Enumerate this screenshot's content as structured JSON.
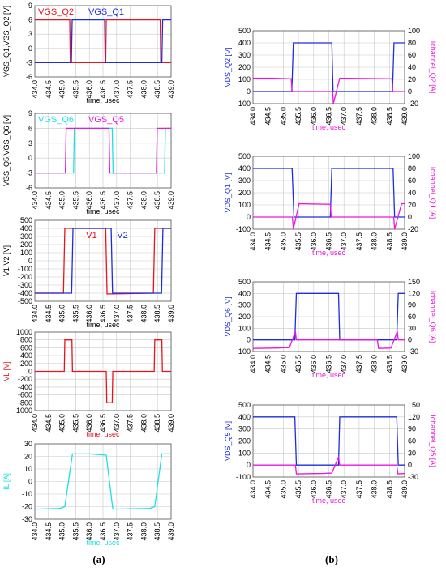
{
  "captions": {
    "a": "(a)",
    "b": "(b)"
  },
  "colors": {
    "red": "#e8141c",
    "blue": "#1e2be3",
    "cyan": "#19e1e6",
    "magenta": "#ec14e0",
    "grid": "#c8c8c8",
    "axis": "#000000"
  },
  "chart_data": [
    {
      "id": "a1",
      "type": "line",
      "xlabel": "time, usec",
      "ylabel": "VGS_Q1,VGS_Q2 [V]",
      "xlim": [
        434.0,
        439.0
      ],
      "ylim": [
        -6,
        9
      ],
      "xticks": [
        434.0,
        434.5,
        435.0,
        435.5,
        436.0,
        436.5,
        437.0,
        437.5,
        438.0,
        438.5,
        439.0
      ],
      "yticks": [
        -6,
        -3,
        0,
        3,
        6,
        9
      ],
      "series": [
        {
          "name": "VGS_Q2",
          "color": "red",
          "points": [
            [
              434.0,
              6
            ],
            [
              435.28,
              6
            ],
            [
              435.3,
              -3
            ],
            [
              436.6,
              -3
            ],
            [
              436.62,
              6
            ],
            [
              438.6,
              6
            ],
            [
              438.62,
              -3
            ],
            [
              439.0,
              -3
            ]
          ]
        },
        {
          "name": "VGS_Q1",
          "color": "blue",
          "points": [
            [
              434.0,
              -3
            ],
            [
              435.34,
              -3
            ],
            [
              435.37,
              6
            ],
            [
              436.56,
              6
            ],
            [
              436.58,
              -3
            ],
            [
              438.66,
              -3
            ],
            [
              438.69,
              6
            ],
            [
              439.0,
              6
            ]
          ]
        }
      ]
    },
    {
      "id": "a2",
      "type": "line",
      "xlabel": "time, usec",
      "ylabel": "VGS_Q5,VGS_Q6 [V]",
      "xlim": [
        434.0,
        439.0
      ],
      "ylim": [
        -6,
        9
      ],
      "xticks": [
        434.0,
        434.5,
        435.0,
        435.5,
        436.0,
        436.5,
        437.0,
        437.5,
        438.0,
        438.5,
        439.0
      ],
      "yticks": [
        -6,
        -3,
        0,
        3,
        6,
        9
      ],
      "series": [
        {
          "name": "VGS_Q6",
          "color": "cyan",
          "points": [
            [
              434.0,
              -3
            ],
            [
              435.42,
              -3
            ],
            [
              435.45,
              6
            ],
            [
              436.84,
              6
            ],
            [
              436.87,
              -3
            ],
            [
              438.76,
              -3
            ],
            [
              438.79,
              6
            ],
            [
              439.0,
              6
            ]
          ]
        },
        {
          "name": "VGS_Q5",
          "color": "magenta",
          "points": [
            [
              434.0,
              -3
            ],
            [
              435.12,
              -3
            ],
            [
              435.15,
              6
            ],
            [
              436.72,
              6
            ],
            [
              436.75,
              -3
            ],
            [
              438.46,
              -3
            ],
            [
              438.49,
              6
            ],
            [
              439.0,
              6
            ]
          ]
        }
      ]
    },
    {
      "id": "a3",
      "type": "line",
      "xlabel": "time, usec",
      "ylabel": "V1,V2 [V]",
      "xlim": [
        434.0,
        439.0
      ],
      "ylim": [
        -500,
        500
      ],
      "xticks": [
        434.0,
        434.5,
        435.0,
        435.5,
        436.0,
        436.5,
        437.0,
        437.5,
        438.0,
        438.5,
        439.0
      ],
      "yticks": [
        -500,
        -400,
        -300,
        -200,
        -100,
        0,
        100,
        200,
        300,
        400,
        500
      ],
      "annotations": [
        "V1",
        "V2"
      ],
      "series": [
        {
          "name": "V1",
          "color": "red",
          "points": [
            [
              434.0,
              -400
            ],
            [
              435.05,
              -400
            ],
            [
              435.1,
              400
            ],
            [
              436.6,
              400
            ],
            [
              436.65,
              -410
            ],
            [
              438.35,
              -400
            ],
            [
              438.4,
              400
            ],
            [
              439.0,
              400
            ]
          ]
        },
        {
          "name": "V2",
          "color": "blue",
          "points": [
            [
              434.0,
              -400
            ],
            [
              435.35,
              -400
            ],
            [
              435.4,
              400
            ],
            [
              436.8,
              400
            ],
            [
              436.85,
              -400
            ],
            [
              438.65,
              -400
            ],
            [
              438.7,
              400
            ],
            [
              439.0,
              400
            ]
          ]
        }
      ]
    },
    {
      "id": "a4",
      "type": "line",
      "xlabel": "time, usec",
      "ylabel": "VL [V]",
      "xlim": [
        434.0,
        439.0
      ],
      "ylim": [
        -1000,
        1000
      ],
      "xticks": [
        434.0,
        434.5,
        435.0,
        435.5,
        436.0,
        436.5,
        437.0,
        437.5,
        438.0,
        438.5,
        439.0
      ],
      "yticks": [
        -1000,
        -800,
        -600,
        -400,
        -200,
        0,
        200,
        400,
        600,
        800,
        1000
      ],
      "series": [
        {
          "name": "VL",
          "color": "red",
          "points": [
            [
              434.0,
              0
            ],
            [
              435.08,
              0
            ],
            [
              435.1,
              800
            ],
            [
              435.36,
              800
            ],
            [
              435.38,
              0
            ],
            [
              436.62,
              0
            ],
            [
              436.64,
              -800
            ],
            [
              436.84,
              -800
            ],
            [
              436.86,
              0
            ],
            [
              438.38,
              0
            ],
            [
              438.4,
              800
            ],
            [
              438.66,
              800
            ],
            [
              438.68,
              0
            ],
            [
              439.0,
              0
            ]
          ]
        }
      ]
    },
    {
      "id": "a5",
      "type": "line",
      "xlabel": "time, usec",
      "ylabel": "IL [A]",
      "xlim": [
        434.0,
        439.0
      ],
      "ylim": [
        -30,
        30
      ],
      "xticks": [
        434.0,
        434.5,
        435.0,
        435.5,
        436.0,
        436.5,
        437.0,
        437.5,
        438.0,
        438.5,
        439.0
      ],
      "yticks": [
        -30,
        -20,
        -10,
        0,
        10,
        20,
        30
      ],
      "series": [
        {
          "name": "IL",
          "color": "cyan",
          "points": [
            [
              434.0,
              -22
            ],
            [
              434.9,
              -21.5
            ],
            [
              435.1,
              -20
            ],
            [
              435.38,
              22
            ],
            [
              436.0,
              22
            ],
            [
              436.62,
              21
            ],
            [
              436.86,
              -22
            ],
            [
              438.2,
              -21.5
            ],
            [
              438.4,
              -20
            ],
            [
              438.66,
              22
            ],
            [
              439.0,
              22
            ]
          ]
        }
      ]
    },
    {
      "id": "b1",
      "type": "line",
      "xlabel": "time, usec",
      "ylabel": "VDS_Q2 [V]",
      "y2label": "Ichannel_Q2 [A]",
      "xlim": [
        434.0,
        439.0
      ],
      "ylim": [
        -100,
        500
      ],
      "y2lim": [
        -20,
        100
      ],
      "xticks": [
        434.0,
        434.5,
        435.0,
        435.5,
        436.0,
        436.5,
        437.0,
        437.5,
        438.0,
        438.5,
        439.0
      ],
      "yticks": [
        -100,
        0,
        100,
        200,
        300,
        400,
        500
      ],
      "y2ticks": [
        -20,
        0,
        20,
        40,
        60,
        80,
        100
      ],
      "series": [
        {
          "name": "VDS_Q2",
          "axis": "y",
          "color": "blue",
          "points": [
            [
              434.0,
              0
            ],
            [
              435.28,
              0
            ],
            [
              435.33,
              400
            ],
            [
              436.6,
              400
            ],
            [
              436.64,
              0
            ],
            [
              438.6,
              0
            ],
            [
              438.65,
              400
            ],
            [
              439.0,
              400
            ]
          ]
        },
        {
          "name": "Ichannel_Q2",
          "axis": "y2",
          "color": "magenta",
          "points": [
            [
              434.0,
              22
            ],
            [
              434.6,
              22
            ],
            [
              435.26,
              21
            ],
            [
              435.29,
              0
            ],
            [
              436.63,
              0
            ],
            [
              436.65,
              -20
            ],
            [
              436.86,
              22
            ],
            [
              438.58,
              21
            ],
            [
              438.61,
              0
            ],
            [
              439.0,
              0
            ]
          ]
        }
      ]
    },
    {
      "id": "b2",
      "type": "line",
      "xlabel": "time, usec",
      "ylabel": "VDS_Q1 [V]",
      "y2label": "Ichannel_Q1 [A]",
      "xlim": [
        434.0,
        439.0
      ],
      "ylim": [
        -100,
        500
      ],
      "y2lim": [
        -20,
        100
      ],
      "xticks": [
        434.0,
        434.5,
        435.0,
        435.5,
        436.0,
        436.5,
        437.0,
        437.5,
        438.0,
        438.5,
        439.0
      ],
      "yticks": [
        -100,
        0,
        100,
        200,
        300,
        400,
        500
      ],
      "y2ticks": [
        -20,
        0,
        20,
        40,
        60,
        80,
        100
      ],
      "series": [
        {
          "name": "VDS_Q1",
          "axis": "y",
          "color": "blue",
          "points": [
            [
              434.0,
              400
            ],
            [
              435.29,
              400
            ],
            [
              435.35,
              0
            ],
            [
              436.55,
              0
            ],
            [
              436.6,
              400
            ],
            [
              438.62,
              400
            ],
            [
              438.67,
              0
            ],
            [
              439.0,
              0
            ]
          ]
        },
        {
          "name": "Ichannel_Q1",
          "axis": "y2",
          "color": "magenta",
          "points": [
            [
              434.0,
              0
            ],
            [
              435.3,
              0
            ],
            [
              435.33,
              -20
            ],
            [
              435.52,
              22
            ],
            [
              436.55,
              21
            ],
            [
              436.58,
              0
            ],
            [
              438.64,
              0
            ],
            [
              438.67,
              -20
            ],
            [
              438.9,
              22
            ],
            [
              439.0,
              22
            ]
          ]
        }
      ]
    },
    {
      "id": "b3",
      "type": "line",
      "xlabel": "time, usec",
      "ylabel": "VDS_Q6 [V]",
      "y2label": "Ichannel_Q6 [A]",
      "xlim": [
        434.0,
        439.0
      ],
      "ylim": [
        -100,
        500
      ],
      "y2lim": [
        -30,
        150
      ],
      "xticks": [
        434.0,
        434.5,
        435.0,
        435.5,
        436.0,
        436.5,
        437.0,
        437.5,
        438.0,
        438.5,
        439.0
      ],
      "yticks": [
        -100,
        0,
        100,
        200,
        300,
        400,
        500
      ],
      "y2ticks": [
        -30,
        0,
        30,
        60,
        90,
        120,
        150
      ],
      "series": [
        {
          "name": "VDS_Q6",
          "axis": "y",
          "color": "blue",
          "points": [
            [
              434.0,
              0
            ],
            [
              435.38,
              0
            ],
            [
              435.43,
              400
            ],
            [
              436.82,
              400
            ],
            [
              436.86,
              0
            ],
            [
              438.74,
              0
            ],
            [
              438.79,
              400
            ],
            [
              439.0,
              400
            ]
          ]
        },
        {
          "name": "Ichannel_Q6",
          "axis": "y2",
          "color": "magenta",
          "points": [
            [
              434.0,
              -22
            ],
            [
              434.8,
              -21
            ],
            [
              435.2,
              -20
            ],
            [
              435.4,
              22
            ],
            [
              435.43,
              0
            ],
            [
              438.1,
              0
            ],
            [
              438.14,
              -22
            ],
            [
              438.55,
              -21
            ],
            [
              438.76,
              22
            ],
            [
              438.79,
              0
            ],
            [
              439.0,
              0
            ]
          ]
        }
      ]
    },
    {
      "id": "b4",
      "type": "line",
      "xlabel": "time, usec",
      "ylabel": "VDS_Q5 [V]",
      "y2label": "Ichannel_Q5 [A]",
      "xlim": [
        434.0,
        439.0
      ],
      "ylim": [
        -100,
        500
      ],
      "y2lim": [
        -30,
        150
      ],
      "xticks": [
        434.0,
        434.5,
        435.0,
        435.5,
        436.0,
        436.5,
        437.0,
        437.5,
        438.0,
        438.5,
        439.0
      ],
      "yticks": [
        -100,
        0,
        100,
        200,
        300,
        400,
        500
      ],
      "y2ticks": [
        -30,
        0,
        30,
        60,
        90,
        120,
        150
      ],
      "series": [
        {
          "name": "VDS_Q5",
          "axis": "y",
          "color": "blue",
          "points": [
            [
              434.0,
              400
            ],
            [
              435.38,
              400
            ],
            [
              435.43,
              0
            ],
            [
              436.82,
              0
            ],
            [
              436.86,
              400
            ],
            [
              438.74,
              400
            ],
            [
              438.79,
              0
            ],
            [
              439.0,
              0
            ]
          ]
        },
        {
          "name": "Ichannel_Q5",
          "axis": "y2",
          "color": "magenta",
          "points": [
            [
              434.0,
              0
            ],
            [
              435.4,
              0
            ],
            [
              435.43,
              -22
            ],
            [
              436.3,
              -21
            ],
            [
              436.6,
              -20
            ],
            [
              436.82,
              20
            ],
            [
              436.86,
              0
            ],
            [
              438.74,
              0
            ],
            [
              438.78,
              -22
            ],
            [
              439.0,
              -21
            ]
          ]
        }
      ]
    }
  ]
}
